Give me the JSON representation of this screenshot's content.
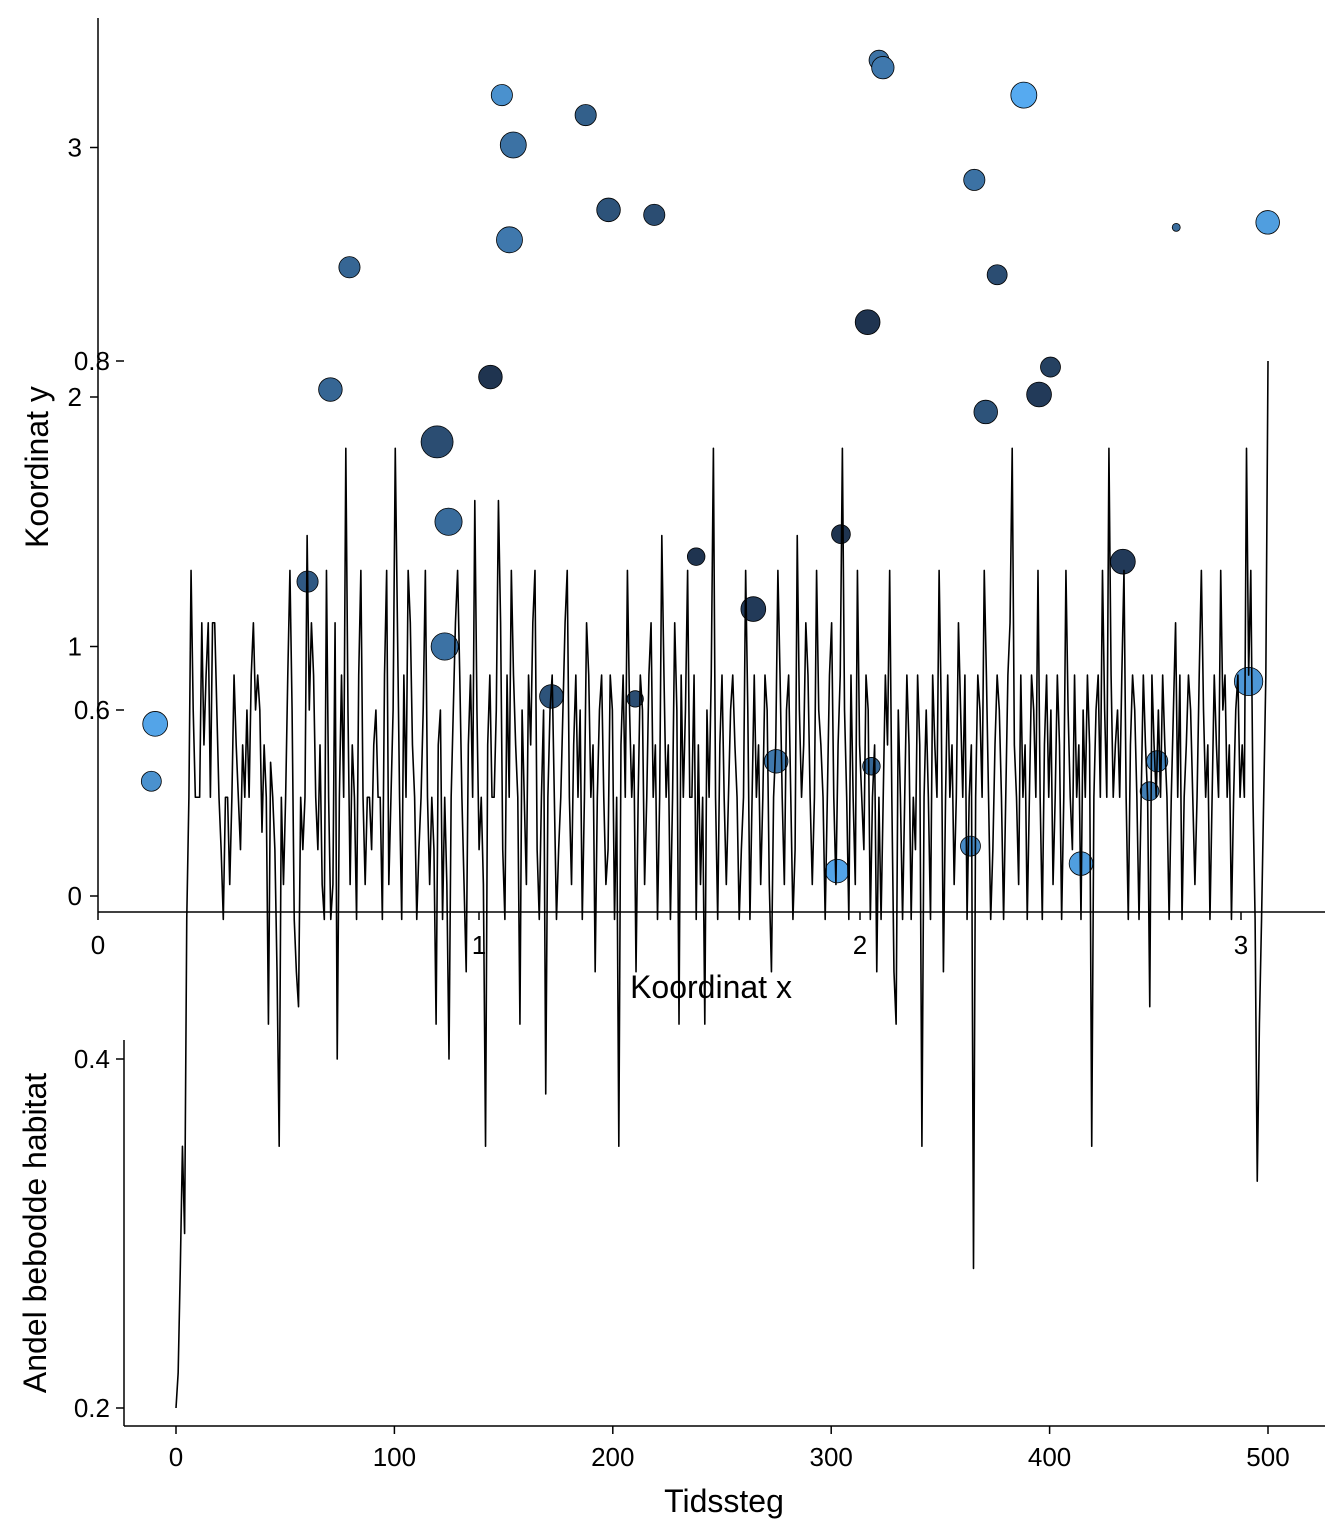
{
  "chart_data": [
    {
      "type": "scatter",
      "title": "",
      "xlabel": "Koordinat x",
      "ylabel": "Koordinat y",
      "xlim": [
        0,
        3.2
      ],
      "ylim": [
        -0.05,
        3.5
      ],
      "xticks": [
        0,
        1,
        2,
        3
      ],
      "xtick_labels": [
        "0",
        "1",
        "2",
        "3"
      ],
      "yticks": [
        0,
        1,
        2,
        3
      ],
      "ytick_labels": [
        "0",
        "1",
        "2",
        "3"
      ],
      "grid": false,
      "legend": "none",
      "point_fill_range": [
        "#1c2e48",
        "#56aaf0"
      ],
      "point_size_range": [
        4,
        16
      ],
      "points": [
        {
          "x": 0.15,
          "y": 0.69,
          "size": 0.7,
          "shade": 0.95
        },
        {
          "x": 0.14,
          "y": 0.46,
          "size": 0.5,
          "shade": 0.8
        },
        {
          "x": 0.66,
          "y": 2.52,
          "size": 0.55,
          "shade": 0.45
        },
        {
          "x": 0.61,
          "y": 2.03,
          "size": 0.65,
          "shade": 0.45
        },
        {
          "x": 0.55,
          "y": 1.26,
          "size": 0.55,
          "shade": 0.35
        },
        {
          "x": 0.89,
          "y": 1.82,
          "size": 1.0,
          "shade": 0.25
        },
        {
          "x": 0.92,
          "y": 1.5,
          "size": 0.8,
          "shade": 0.5
        },
        {
          "x": 0.91,
          "y": 1.0,
          "size": 0.8,
          "shade": 0.55
        },
        {
          "x": 1.06,
          "y": 3.21,
          "size": 0.55,
          "shade": 0.8
        },
        {
          "x": 1.09,
          "y": 3.01,
          "size": 0.75,
          "shade": 0.55
        },
        {
          "x": 1.08,
          "y": 2.63,
          "size": 0.75,
          "shade": 0.6
        },
        {
          "x": 1.03,
          "y": 2.08,
          "size": 0.65,
          "shade": 0.05
        },
        {
          "x": 1.28,
          "y": 3.13,
          "size": 0.55,
          "shade": 0.4
        },
        {
          "x": 1.34,
          "y": 2.75,
          "size": 0.65,
          "shade": 0.3
        },
        {
          "x": 1.46,
          "y": 2.73,
          "size": 0.55,
          "shade": 0.25
        },
        {
          "x": 1.19,
          "y": 0.8,
          "size": 0.65,
          "shade": 0.3
        },
        {
          "x": 1.41,
          "y": 0.79,
          "size": 0.35,
          "shade": 0.25
        },
        {
          "x": 1.57,
          "y": 1.36,
          "size": 0.4,
          "shade": 0.05
        },
        {
          "x": 1.72,
          "y": 1.15,
          "size": 0.7,
          "shade": 0.1
        },
        {
          "x": 1.78,
          "y": 0.54,
          "size": 0.65,
          "shade": 0.6
        },
        {
          "x": 1.95,
          "y": 1.45,
          "size": 0.45,
          "shade": 0.05
        },
        {
          "x": 2.02,
          "y": 2.3,
          "size": 0.7,
          "shade": 0.05
        },
        {
          "x": 2.05,
          "y": 3.35,
          "size": 0.5,
          "shade": 0.55
        },
        {
          "x": 2.06,
          "y": 3.32,
          "size": 0.6,
          "shade": 0.6
        },
        {
          "x": 2.03,
          "y": 0.52,
          "size": 0.4,
          "shade": 0.45
        },
        {
          "x": 1.94,
          "y": 0.1,
          "size": 0.65,
          "shade": 0.95
        },
        {
          "x": 2.3,
          "y": 2.87,
          "size": 0.55,
          "shade": 0.55
        },
        {
          "x": 2.36,
          "y": 2.49,
          "size": 0.5,
          "shade": 0.25
        },
        {
          "x": 2.33,
          "y": 1.94,
          "size": 0.65,
          "shade": 0.3
        },
        {
          "x": 2.47,
          "y": 2.01,
          "size": 0.7,
          "shade": 0.1
        },
        {
          "x": 2.5,
          "y": 2.12,
          "size": 0.5,
          "shade": 0.15
        },
        {
          "x": 2.43,
          "y": 3.21,
          "size": 0.75,
          "shade": 1.0
        },
        {
          "x": 2.29,
          "y": 0.2,
          "size": 0.5,
          "shade": 0.75
        },
        {
          "x": 2.58,
          "y": 0.13,
          "size": 0.65,
          "shade": 0.9
        },
        {
          "x": 2.69,
          "y": 1.34,
          "size": 0.7,
          "shade": 0.1
        },
        {
          "x": 2.83,
          "y": 2.68,
          "size": 0.0,
          "shade": 0.5
        },
        {
          "x": 2.78,
          "y": 0.54,
          "size": 0.55,
          "shade": 0.7
        },
        {
          "x": 2.76,
          "y": 0.42,
          "size": 0.45,
          "shade": 0.65
        },
        {
          "x": 3.02,
          "y": 0.86,
          "size": 0.85,
          "shade": 0.85
        },
        {
          "x": 3.07,
          "y": 2.7,
          "size": 0.65,
          "shade": 0.9
        }
      ]
    },
    {
      "type": "line",
      "title": "",
      "xlabel": "Tidssteg",
      "ylabel": "Andel bebodde habitat",
      "xlim": [
        -22,
        522
      ],
      "ylim": [
        0.17,
        0.83
      ],
      "xticks": [
        0,
        100,
        200,
        300,
        400,
        500
      ],
      "xtick_labels": [
        "0",
        "100",
        "200",
        "300",
        "400",
        "500"
      ],
      "yticks": [
        0.2,
        0.4,
        0.6,
        0.8
      ],
      "ytick_labels": [
        "0.2",
        "0.4",
        "0.6",
        "0.8"
      ],
      "grid": false,
      "legend": "none",
      "line_color": "#000000",
      "y": [
        0.2,
        0.22,
        0.28,
        0.35,
        0.3,
        0.48,
        0.55,
        0.68,
        0.6,
        0.55,
        0.55,
        0.55,
        0.65,
        0.58,
        0.62,
        0.65,
        0.55,
        0.65,
        0.65,
        0.6,
        0.55,
        0.52,
        0.48,
        0.55,
        0.55,
        0.5,
        0.55,
        0.62,
        0.58,
        0.55,
        0.52,
        0.58,
        0.55,
        0.6,
        0.55,
        0.62,
        0.65,
        0.6,
        0.62,
        0.6,
        0.53,
        0.58,
        0.55,
        0.42,
        0.57,
        0.55,
        0.52,
        0.45,
        0.35,
        0.55,
        0.5,
        0.55,
        0.62,
        0.68,
        0.6,
        0.48,
        0.45,
        0.43,
        0.55,
        0.52,
        0.55,
        0.7,
        0.6,
        0.65,
        0.62,
        0.55,
        0.52,
        0.58,
        0.5,
        0.48,
        0.68,
        0.55,
        0.48,
        0.5,
        0.65,
        0.4,
        0.55,
        0.62,
        0.55,
        0.75,
        0.6,
        0.5,
        0.58,
        0.55,
        0.48,
        0.62,
        0.68,
        0.55,
        0.5,
        0.55,
        0.55,
        0.52,
        0.58,
        0.6,
        0.55,
        0.55,
        0.48,
        0.62,
        0.68,
        0.5,
        0.55,
        0.6,
        0.75,
        0.65,
        0.55,
        0.48,
        0.62,
        0.55,
        0.68,
        0.65,
        0.58,
        0.55,
        0.48,
        0.52,
        0.55,
        0.6,
        0.68,
        0.55,
        0.5,
        0.55,
        0.52,
        0.42,
        0.58,
        0.6,
        0.48,
        0.55,
        0.5,
        0.4,
        0.55,
        0.6,
        0.65,
        0.68,
        0.62,
        0.55,
        0.5,
        0.45,
        0.58,
        0.62,
        0.55,
        0.72,
        0.6,
        0.52,
        0.55,
        0.5,
        0.35,
        0.58,
        0.62,
        0.55,
        0.55,
        0.6,
        0.72,
        0.65,
        0.52,
        0.48,
        0.62,
        0.55,
        0.68,
        0.62,
        0.58,
        0.55,
        0.42,
        0.6,
        0.55,
        0.5,
        0.62,
        0.58,
        0.65,
        0.68,
        0.52,
        0.48,
        0.55,
        0.6,
        0.38,
        0.55,
        0.6,
        0.62,
        0.55,
        0.48,
        0.52,
        0.55,
        0.6,
        0.65,
        0.68,
        0.55,
        0.5,
        0.58,
        0.62,
        0.55,
        0.6,
        0.48,
        0.55,
        0.65,
        0.62,
        0.55,
        0.58,
        0.45,
        0.55,
        0.6,
        0.62,
        0.55,
        0.5,
        0.52,
        0.62,
        0.6,
        0.48,
        0.55,
        0.35,
        0.58,
        0.62,
        0.55,
        0.68,
        0.6,
        0.55,
        0.58,
        0.45,
        0.55,
        0.62,
        0.6,
        0.5,
        0.55,
        0.62,
        0.65,
        0.55,
        0.58,
        0.48,
        0.55,
        0.7,
        0.62,
        0.55,
        0.58,
        0.48,
        0.55,
        0.65,
        0.6,
        0.42,
        0.62,
        0.55,
        0.6,
        0.68,
        0.55,
        0.55,
        0.62,
        0.48,
        0.58,
        0.5,
        0.55,
        0.42,
        0.6,
        0.55,
        0.62,
        0.75,
        0.55,
        0.48,
        0.58,
        0.62,
        0.55,
        0.5,
        0.55,
        0.6,
        0.62,
        0.58,
        0.55,
        0.48,
        0.52,
        0.55,
        0.68,
        0.6,
        0.48,
        0.55,
        0.62,
        0.55,
        0.58,
        0.5,
        0.55,
        0.62,
        0.6,
        0.5,
        0.45,
        0.55,
        0.58,
        0.68,
        0.62,
        0.55,
        0.5,
        0.6,
        0.62,
        0.55,
        0.48,
        0.52,
        0.7,
        0.6,
        0.55,
        0.58,
        0.65,
        0.62,
        0.55,
        0.5,
        0.55,
        0.68,
        0.6,
        0.58,
        0.55,
        0.48,
        0.55,
        0.62,
        0.65,
        0.55,
        0.5,
        0.58,
        0.62,
        0.75,
        0.6,
        0.55,
        0.48,
        0.62,
        0.55,
        0.5,
        0.68,
        0.58,
        0.55,
        0.52,
        0.62,
        0.6,
        0.48,
        0.55,
        0.58,
        0.45,
        0.55,
        0.48,
        0.55,
        0.62,
        0.58,
        0.68,
        0.55,
        0.45,
        0.42,
        0.6,
        0.55,
        0.48,
        0.55,
        0.62,
        0.58,
        0.48,
        0.55,
        0.52,
        0.62,
        0.58,
        0.35,
        0.55,
        0.6,
        0.55,
        0.48,
        0.62,
        0.58,
        0.55,
        0.68,
        0.6,
        0.45,
        0.55,
        0.62,
        0.55,
        0.58,
        0.5,
        0.55,
        0.65,
        0.6,
        0.55,
        0.62,
        0.48,
        0.55,
        0.58,
        0.28,
        0.55,
        0.62,
        0.6,
        0.55,
        0.68,
        0.62,
        0.55,
        0.48,
        0.52,
        0.58,
        0.62,
        0.6,
        0.55,
        0.48,
        0.55,
        0.62,
        0.65,
        0.75,
        0.58,
        0.55,
        0.5,
        0.62,
        0.55,
        0.58,
        0.48,
        0.55,
        0.62,
        0.6,
        0.55,
        0.68,
        0.55,
        0.48,
        0.58,
        0.62,
        0.55,
        0.6,
        0.5,
        0.55,
        0.62,
        0.58,
        0.48,
        0.55,
        0.68,
        0.6,
        0.55,
        0.52,
        0.62,
        0.55,
        0.58,
        0.48,
        0.6,
        0.55,
        0.62,
        0.58,
        0.35,
        0.55,
        0.6,
        0.62,
        0.55,
        0.68,
        0.6,
        0.55,
        0.75,
        0.62,
        0.55,
        0.58,
        0.6,
        0.55,
        0.62,
        0.68,
        0.55,
        0.48,
        0.58,
        0.62,
        0.6,
        0.55,
        0.48,
        0.55,
        0.62,
        0.58,
        0.55,
        0.43,
        0.62,
        0.58,
        0.55,
        0.6,
        0.55,
        0.62,
        0.58,
        0.55,
        0.48,
        0.55,
        0.6,
        0.65,
        0.55,
        0.62,
        0.48,
        0.55,
        0.58,
        0.62,
        0.6,
        0.55,
        0.5,
        0.55,
        0.62,
        0.68,
        0.6,
        0.55,
        0.58,
        0.48,
        0.55,
        0.62,
        0.58,
        0.55,
        0.68,
        0.6,
        0.62,
        0.55,
        0.58,
        0.48,
        0.55,
        0.6,
        0.62,
        0.55,
        0.58,
        0.55,
        0.75,
        0.62,
        0.68,
        0.55,
        0.48,
        0.33,
        0.42,
        0.48,
        0.55,
        0.62,
        0.8
      ]
    }
  ]
}
